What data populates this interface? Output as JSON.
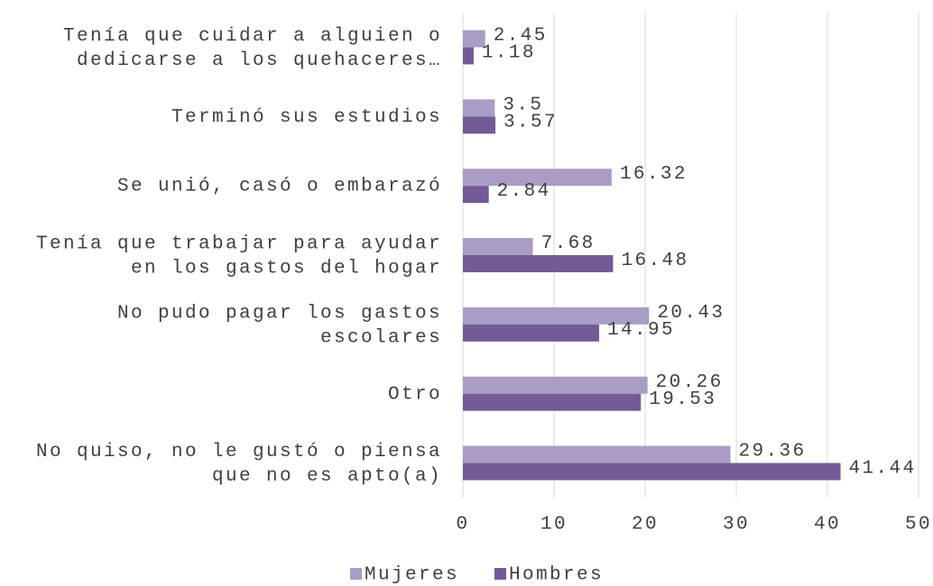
{
  "chart_data": {
    "type": "hbar",
    "categories": [
      "Tenía que cuidar a alguien o dedicarse a los quehaceres…",
      "Terminó sus estudios",
      "Se unió, casó o embarazó",
      "Tenía que trabajar para ayudar en los gastos del hogar",
      "No pudo pagar los gastos escolares",
      "Otro",
      "No quiso, no le gustó o piensa que no es apto(a)"
    ],
    "series": [
      {
        "name": "Mujeres",
        "color": "#a99dc5",
        "values": [
          2.45,
          3.5,
          16.32,
          7.68,
          20.43,
          20.26,
          29.36
        ]
      },
      {
        "name": "Hombres",
        "color": "#735b97",
        "values": [
          1.18,
          3.57,
          2.84,
          16.48,
          14.95,
          19.53,
          41.44
        ]
      }
    ],
    "xlim": [
      0,
      50
    ],
    "xticks": [
      0,
      10,
      20,
      30,
      40,
      50
    ],
    "grid": true,
    "legend": "bottom"
  }
}
